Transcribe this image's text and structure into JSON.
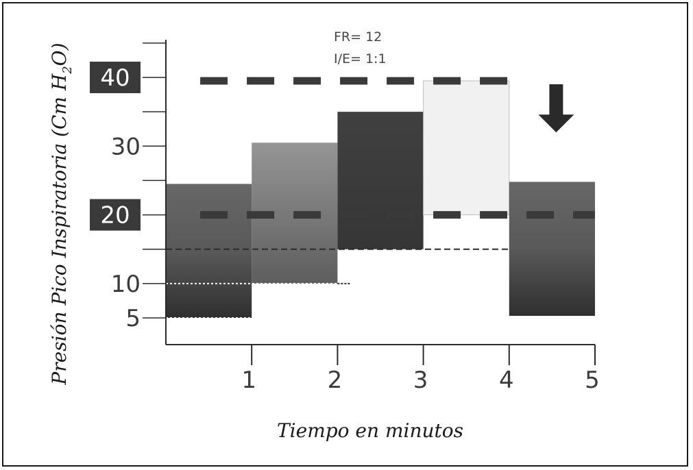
{
  "chart_data": {
    "type": "bar",
    "title": "",
    "xlabel": "Tiempo en minutos",
    "ylabel": "Presión Pico Inspiratoria (Cm H2O)",
    "ylabel_parts": {
      "main": "Presión Pico Inspiratoria (Cm H",
      "sub": "2",
      "end": "O)"
    },
    "xlim": [
      0,
      5
    ],
    "ylim": [
      3,
      47
    ],
    "x_ticks": [
      1,
      2,
      3,
      4,
      5
    ],
    "x_tick_labels": [
      "1",
      "2",
      "3",
      "4",
      "5"
    ],
    "y_ticks": [
      5,
      10,
      15,
      20,
      25,
      30,
      35,
      40,
      45
    ],
    "y_labels": [
      {
        "value": 5,
        "text": "5",
        "boxed": false
      },
      {
        "value": 10,
        "text": "10",
        "boxed": false
      },
      {
        "value": 20,
        "text": "20",
        "boxed": true
      },
      {
        "value": 30,
        "text": "30",
        "boxed": false
      },
      {
        "value": 40,
        "text": "40",
        "boxed": true
      }
    ],
    "bars": [
      {
        "x_start": 0,
        "x_end": 1,
        "bottom": 5,
        "top": 24.5,
        "shade": "dark-gradient"
      },
      {
        "x_start": 1,
        "x_end": 2,
        "bottom": 10,
        "top": 30.5,
        "shade": "mid-gradient"
      },
      {
        "x_start": 2,
        "x_end": 3,
        "bottom": 15,
        "top": 35,
        "shade": "dark"
      },
      {
        "x_start": 3,
        "x_end": 4,
        "bottom": 20,
        "top": 39.5,
        "shade": "light"
      },
      {
        "x_start": 4,
        "x_end": 5,
        "bottom": 5.3,
        "top": 24.8,
        "shade": "dark-gradient"
      }
    ],
    "reference_lines": [
      {
        "y": 39.5,
        "x_start": 0.4,
        "x_end": 4,
        "style": "thick-dash"
      },
      {
        "y": 20,
        "x_start": 0.4,
        "x_end": 5,
        "style": "thick-dash"
      },
      {
        "y": 15,
        "x_start": 0,
        "x_end": 4,
        "style": "thin-dash"
      },
      {
        "y": 10,
        "x_start": 0,
        "x_end": 2.15,
        "style": "dotted"
      },
      {
        "y": 5,
        "x_start": 0,
        "x_end": 1,
        "style": "dotted"
      }
    ],
    "arrow": {
      "x": 4.5,
      "y_top": 39,
      "y_bottom": 32,
      "direction": "down"
    },
    "annotations": [
      "FR= 12",
      "I/E= 1:1"
    ],
    "grid": false,
    "legend": "none"
  },
  "colors": {
    "axis": "#2a2a2a",
    "label_box": "#3a3a3a",
    "bar_dark": "#3c3c3c",
    "bar_mid": "#8a8a8a",
    "bar_light": "#f1f1f1",
    "dash": "#3a3a3a"
  }
}
